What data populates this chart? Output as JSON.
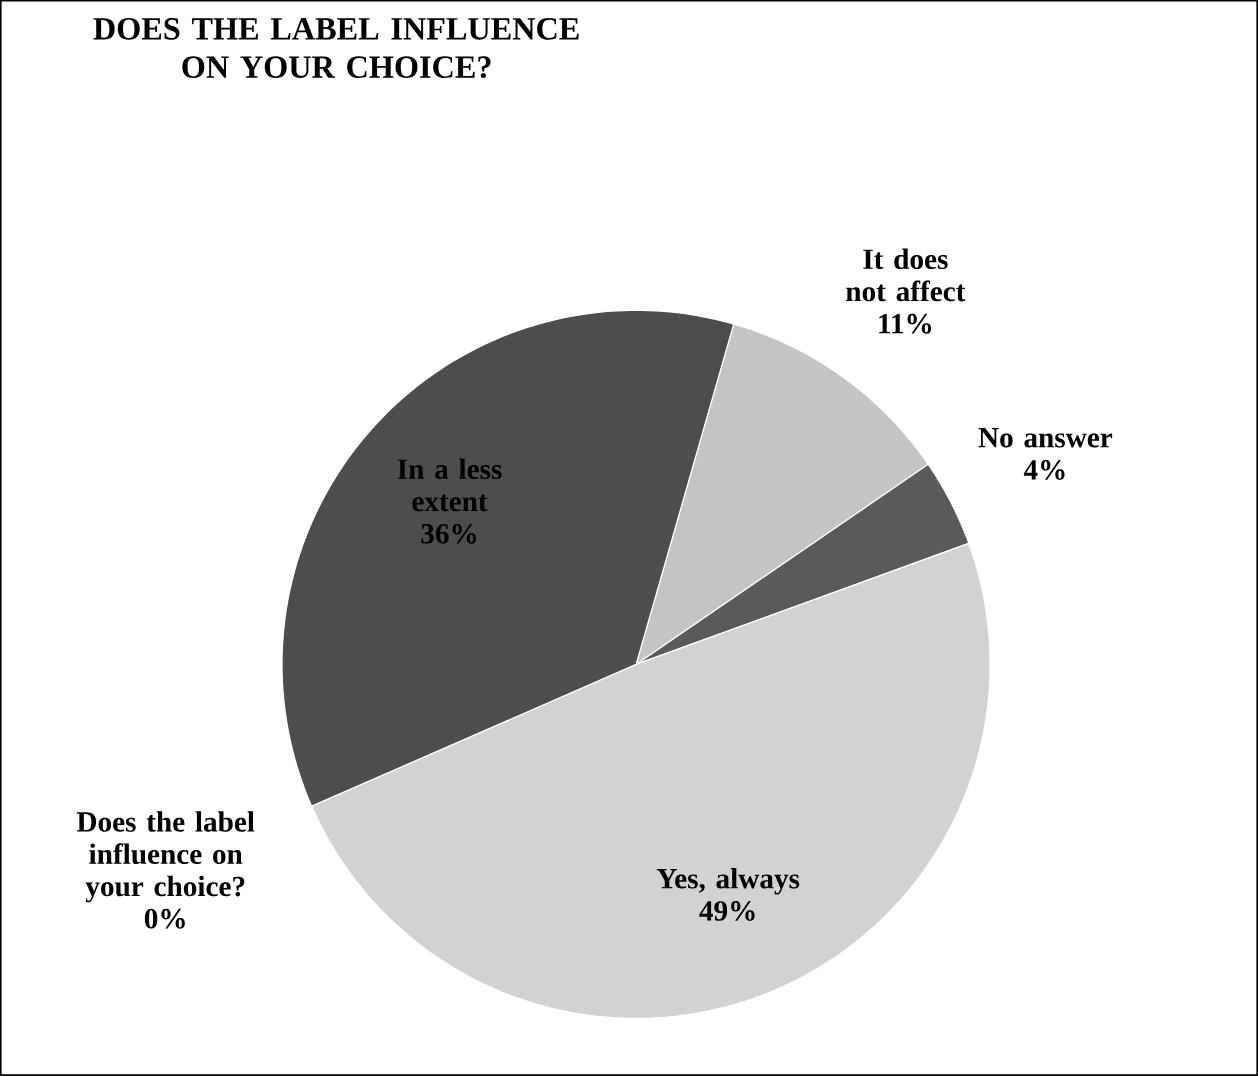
{
  "chart_data": {
    "type": "pie",
    "title": "DOES THE LABEL INFLUENCE ON YOUR CHOICE?",
    "categories": [
      "It does not affect",
      "No answer",
      "Yes, always",
      "Does the label influence on your choice?",
      "In a less extent"
    ],
    "values": [
      11,
      4,
      49,
      0,
      36
    ],
    "value_labels": [
      "11%",
      "4%",
      "49%",
      "0%",
      "36%"
    ],
    "colors": [
      "#c4c4c4",
      "#5a5a5a",
      "#d2d2d2",
      "#8a8a8a",
      "#4d4d4d"
    ]
  }
}
